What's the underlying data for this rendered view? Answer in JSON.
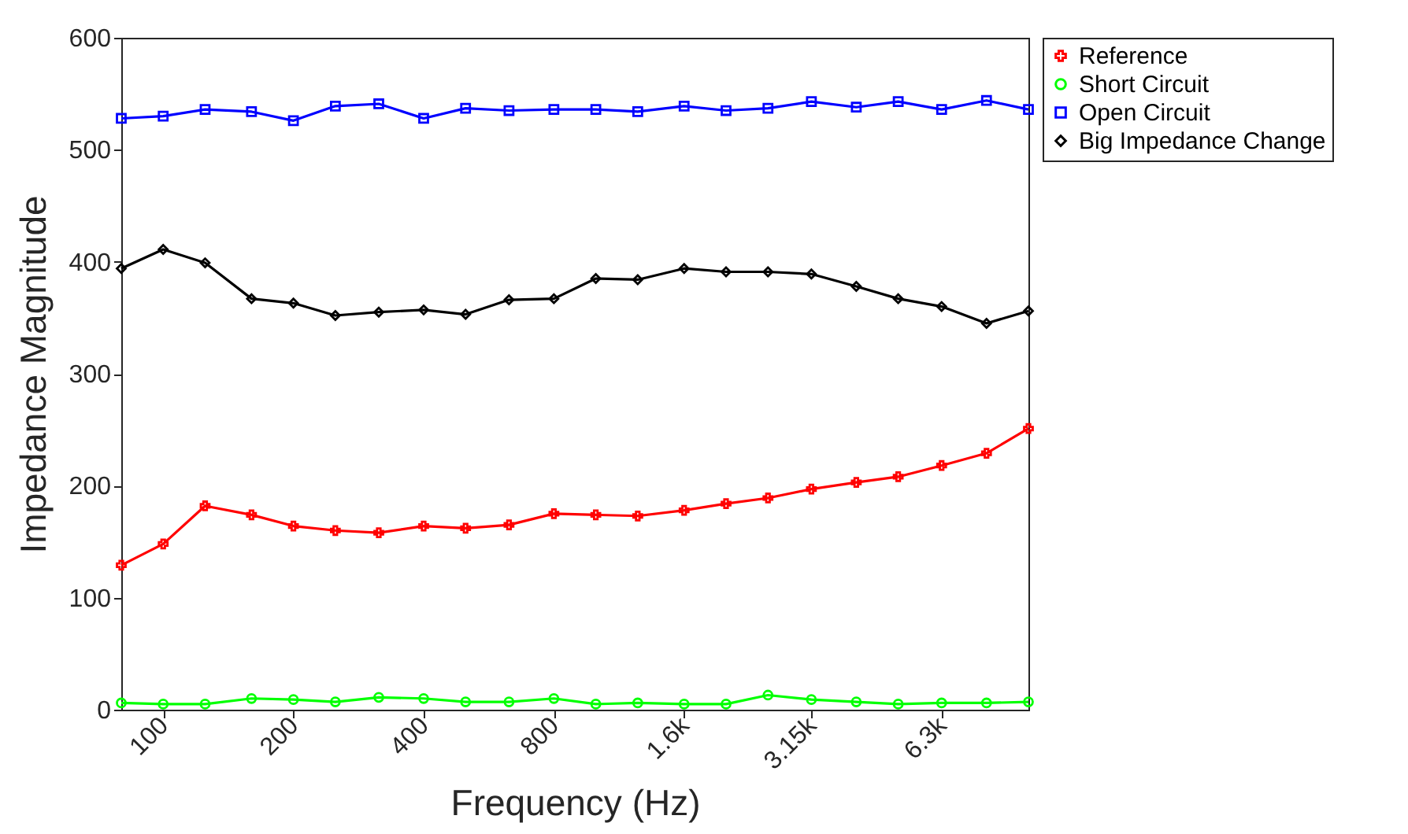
{
  "chart_data": {
    "type": "line",
    "xlabel": "Frequency (Hz)",
    "ylabel": "Impedance Magnitude",
    "x": [
      80,
      100,
      125,
      160,
      200,
      250,
      315,
      400,
      500,
      630,
      800,
      1000,
      1250,
      1600,
      2000,
      2500,
      3150,
      4000,
      5000,
      6300,
      8000,
      10000
    ],
    "log": "x",
    "xlim": [
      80,
      10000
    ],
    "xticks": [
      100,
      200,
      400,
      800,
      {
        "value": 1600,
        "label": "1.6k"
      },
      {
        "value": 3150,
        "label": "3.15k"
      },
      {
        "value": 6300,
        "label": "6.3k"
      }
    ],
    "ylim": [
      0,
      600
    ],
    "yticks": [
      0,
      100,
      200,
      300,
      400,
      500,
      600
    ],
    "grid": false,
    "legend": "top right",
    "line_style": "solid",
    "series": [
      {
        "name": "Reference",
        "color": "#ff0000",
        "marker": "cross",
        "values": [
          129,
          148,
          182,
          174,
          164,
          160,
          158,
          164,
          162,
          165,
          175,
          174,
          173,
          178,
          184,
          189,
          197,
          203,
          208,
          218,
          229,
          251
        ]
      },
      {
        "name": "Short Circuit",
        "color": "#00ff00",
        "marker": "circle",
        "values": [
          6,
          5,
          5,
          10,
          9,
          7,
          11,
          10,
          7,
          7,
          10,
          5,
          6,
          5,
          5,
          13,
          9,
          7,
          5,
          6,
          6,
          7
        ]
      },
      {
        "name": "Open Circuit",
        "color": "#0000ff",
        "marker": "square",
        "values": [
          528,
          530,
          536,
          534,
          526,
          539,
          541,
          528,
          537,
          535,
          536,
          536,
          534,
          539,
          535,
          537,
          543,
          538,
          543,
          536,
          544,
          536
        ]
      },
      {
        "name": "Big Impedance Change",
        "color": "#000000",
        "marker": "diamond",
        "values": [
          394,
          411,
          399,
          367,
          363,
          352,
          355,
          357,
          353,
          366,
          367,
          385,
          384,
          394,
          391,
          391,
          389,
          378,
          367,
          360,
          345,
          356
        ]
      }
    ]
  }
}
